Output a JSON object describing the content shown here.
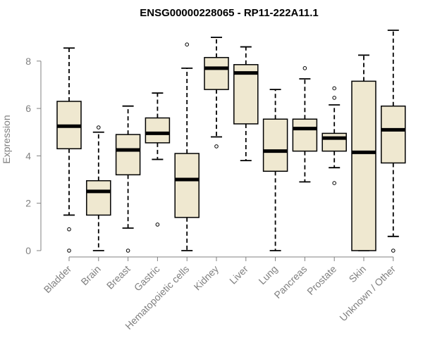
{
  "chart_data": {
    "type": "boxplot",
    "title": "ENSG00000228065 - RP11-222A11.1",
    "xlabel": "",
    "ylabel": "Expression",
    "ylim": [
      0,
      9.3
    ],
    "yticks": [
      0,
      2,
      4,
      6,
      8
    ],
    "box_color": "#efe8d0",
    "categories": [
      "Bladder",
      "Brain",
      "Breast",
      "Gastric",
      "Hematopoietic cells",
      "Kidney",
      "Liver",
      "Lung",
      "Pancreas",
      "Prostate",
      "Skin",
      "Unknown / Other"
    ],
    "boxes": [
      {
        "label": "Bladder",
        "whislo": 1.5,
        "q1": 4.3,
        "med": 5.25,
        "q3": 6.3,
        "whishi": 8.55,
        "fliers": [
          0.9,
          0.0
        ]
      },
      {
        "label": "Brain",
        "whislo": 0.0,
        "q1": 1.5,
        "med": 2.5,
        "q3": 2.95,
        "whishi": 5.0,
        "fliers": [
          5.2
        ]
      },
      {
        "label": "Breast",
        "whislo": 0.95,
        "q1": 3.2,
        "med": 4.25,
        "q3": 4.9,
        "whishi": 6.1,
        "fliers": [
          0.0
        ]
      },
      {
        "label": "Gastric",
        "whislo": 3.85,
        "q1": 4.55,
        "med": 4.95,
        "q3": 5.6,
        "whishi": 6.65,
        "fliers": [
          1.1
        ]
      },
      {
        "label": "Hematopoietic cells",
        "whislo": 0.0,
        "q1": 1.4,
        "med": 3.0,
        "q3": 4.1,
        "whishi": 7.7,
        "fliers": [
          8.7
        ]
      },
      {
        "label": "Kidney",
        "whislo": 4.8,
        "q1": 6.8,
        "med": 7.7,
        "q3": 8.15,
        "whishi": 9.0,
        "fliers": [
          4.4
        ]
      },
      {
        "label": "Liver",
        "whislo": 3.8,
        "q1": 5.35,
        "med": 7.5,
        "q3": 7.85,
        "whishi": 8.6,
        "fliers": []
      },
      {
        "label": "Lung",
        "whislo": 0.0,
        "q1": 3.35,
        "med": 4.2,
        "q3": 5.55,
        "whishi": 6.8,
        "fliers": []
      },
      {
        "label": "Pancreas",
        "whislo": 2.9,
        "q1": 4.2,
        "med": 5.15,
        "q3": 5.55,
        "whishi": 7.25,
        "fliers": [
          7.7
        ]
      },
      {
        "label": "Prostate",
        "whislo": 3.5,
        "q1": 4.2,
        "med": 4.75,
        "q3": 4.95,
        "whishi": 6.15,
        "fliers": [
          6.85,
          6.45,
          2.85
        ]
      },
      {
        "label": "Skin",
        "whislo": 0.0,
        "q1": 0.0,
        "med": 4.15,
        "q3": 7.15,
        "whishi": 8.25,
        "fliers": []
      },
      {
        "label": "Unknown / Other",
        "whislo": 0.6,
        "q1": 3.7,
        "med": 5.1,
        "q3": 6.1,
        "whishi": 9.3,
        "fliers": [
          0.0
        ]
      }
    ]
  }
}
